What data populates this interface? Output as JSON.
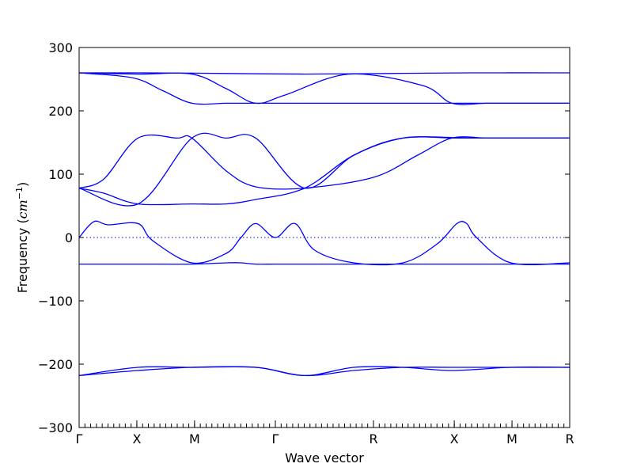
{
  "chart_data": {
    "type": "line",
    "title": "",
    "xlabel": "Wave vector",
    "ylabel_main": "Frequency (",
    "ylabel_unit": "cm",
    "ylabel_exp": "−1",
    "ylabel_close": ")",
    "ylim": [
      -300,
      300
    ],
    "y_ticks": [
      300,
      200,
      100,
      0,
      -100,
      -200,
      -300
    ],
    "y_tick_labels": [
      "300",
      "200",
      "100",
      "0",
      "−100",
      "−200",
      "−300"
    ],
    "high_symmetry_labels": [
      "Γ",
      "X",
      "M",
      "Γ",
      "R",
      "X",
      "M",
      "R"
    ],
    "path_segments": [
      {
        "from": "Γ",
        "to": "X",
        "minor_ticks": 10
      },
      {
        "from": "X",
        "to": "M",
        "minor_ticks": 10
      },
      {
        "from": "M",
        "to": "Γ",
        "minor_ticks": 14
      },
      {
        "from": "Γ",
        "to": "R",
        "minor_ticks": 17
      },
      {
        "from": "R",
        "to": "X",
        "minor_ticks": 14
      },
      {
        "from": "X",
        "to": "M",
        "minor_ticks": 10
      },
      {
        "from": "M",
        "to": "R",
        "minor_ticks": 10
      }
    ],
    "zero_line": true,
    "line_color": "#0000ff",
    "series": [
      {
        "x": [
          0,
          0.13,
          0.3,
          0.46,
          0.63,
          0.8,
          1.0
        ],
        "y": [
          260,
          260,
          259,
          258,
          259,
          260,
          260
        ]
      },
      {
        "x": [
          0,
          0.11,
          0.17,
          0.23,
          0.3,
          0.36,
          0.46,
          0.63,
          0.69,
          0.75,
          0.82,
          0.88,
          1.0
        ],
        "y": [
          260,
          252,
          232,
          212,
          212,
          212,
          212,
          212,
          212,
          212,
          212,
          212,
          212
        ]
      },
      {
        "x": [
          0,
          0.12,
          0.23,
          0.3,
          0.36,
          0.42,
          0.55,
          0.7,
          0.76,
          0.83,
          0.88,
          0.98,
          1.0
        ],
        "y": [
          260,
          258,
          258,
          235,
          212,
          225,
          258,
          240,
          212,
          212,
          212,
          212,
          212
        ]
      },
      {
        "x": [
          0,
          0.05,
          0.12,
          0.23,
          0.3,
          0.36,
          0.46,
          0.56,
          0.66,
          0.79,
          0.82,
          0.88,
          0.95,
          1.0
        ],
        "y": [
          78,
          70,
          53,
          53,
          53,
          60,
          78,
          130,
          157,
          157,
          157,
          157,
          157,
          157
        ]
      },
      {
        "x": [
          0,
          0.05,
          0.12,
          0.2,
          0.23,
          0.3,
          0.36,
          0.46,
          0.6,
          0.69,
          0.76,
          0.83,
          0.88,
          0.92,
          1.0
        ],
        "y": [
          78,
          92,
          157,
          157,
          157,
          105,
          80,
          78,
          95,
          130,
          157,
          157,
          157,
          157,
          157
        ]
      },
      {
        "x": [
          0,
          0.12,
          0.23,
          0.3,
          0.36,
          0.46,
          0.56,
          0.66,
          0.76,
          0.8,
          0.88,
          0.91,
          1.0
        ],
        "y": [
          78,
          53,
          157,
          157,
          157,
          78,
          130,
          157,
          157,
          157,
          157,
          157,
          157
        ]
      },
      {
        "x": [
          0,
          0.03,
          0.06,
          0.12,
          0.15,
          0.23,
          0.3,
          0.33,
          0.36,
          0.4,
          0.44,
          0.48,
          0.56,
          0.66,
          0.73,
          0.77,
          0.79,
          0.81,
          0.88,
          1.0
        ],
        "y": [
          0,
          25,
          20,
          22,
          -5,
          -40,
          -25,
          0,
          22,
          0,
          22,
          -20,
          -40,
          -40,
          -10,
          22,
          22,
          0,
          -40,
          -40
        ]
      },
      {
        "x": [
          0,
          0.05,
          0.12,
          0.23,
          0.3,
          0.33,
          0.36,
          0.4,
          0.46,
          0.56,
          0.66,
          0.76,
          0.88,
          1.0
        ],
        "y": [
          -42,
          -42,
          -42,
          -42,
          -40,
          -40,
          -42,
          -42,
          -42,
          -42,
          -42,
          -42,
          -42,
          -42
        ]
      },
      {
        "x": [
          0,
          0.12,
          0.23,
          0.36,
          0.46,
          0.56,
          0.66,
          0.76,
          0.88,
          1.0
        ],
        "y": [
          -218,
          -210,
          -205,
          -205,
          -218,
          -210,
          -205,
          -205,
          -205,
          -205
        ]
      },
      {
        "x": [
          0,
          0.12,
          0.23,
          0.36,
          0.46,
          0.56,
          0.66,
          0.76,
          0.88,
          1.0
        ],
        "y": [
          -218,
          -205,
          -205,
          -205,
          -218,
          -205,
          -205,
          -210,
          -205,
          -205
        ]
      }
    ]
  }
}
